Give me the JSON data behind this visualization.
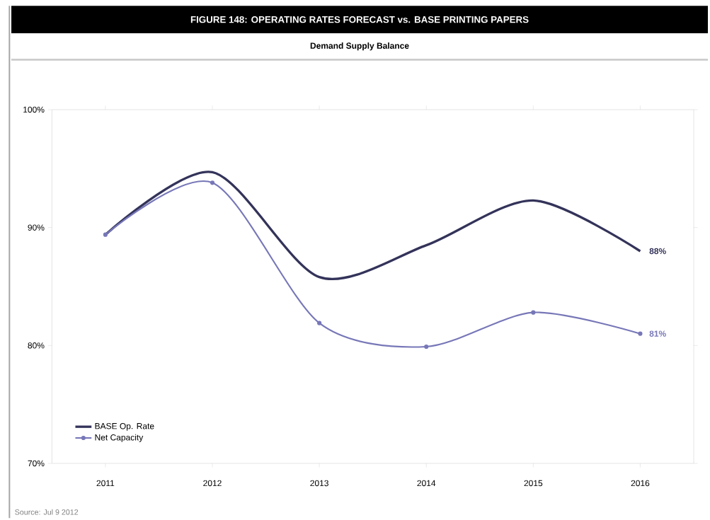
{
  "chart_data": {
    "type": "line",
    "title": "FIGURE 148: OPERATING RATES FORECAST vs. BASE PRINTING PAPERS",
    "subtitle": "Demand Supply Balance",
    "categories": [
      "2011",
      "2012",
      "2013",
      "2014",
      "2015",
      "2016"
    ],
    "series": [
      {
        "name": "BASE Op. Rate",
        "color": "#33335a",
        "values": [
          89.4,
          94.7,
          85.8,
          88.5,
          92.3,
          88
        ],
        "value_labels": [
          null,
          null,
          null,
          null,
          null,
          "88%"
        ],
        "marker": "none"
      },
      {
        "name": "Net Capacity",
        "color": "#7777b8",
        "values": [
          89.4,
          93.8,
          81.9,
          79.9,
          82.8,
          81
        ],
        "value_labels": [
          null,
          null,
          null,
          null,
          null,
          "81%"
        ],
        "marker": "circle"
      }
    ],
    "ylim": [
      70,
      100
    ],
    "yticks": [
      {
        "value": 70,
        "label": "70%"
      },
      {
        "value": 80,
        "label": "80%"
      },
      {
        "value": 90,
        "label": "90%"
      },
      {
        "value": 100,
        "label": "100%"
      }
    ],
    "legend": "bottom left",
    "annotations": [
      "Source: Jul 9 2012"
    ]
  }
}
